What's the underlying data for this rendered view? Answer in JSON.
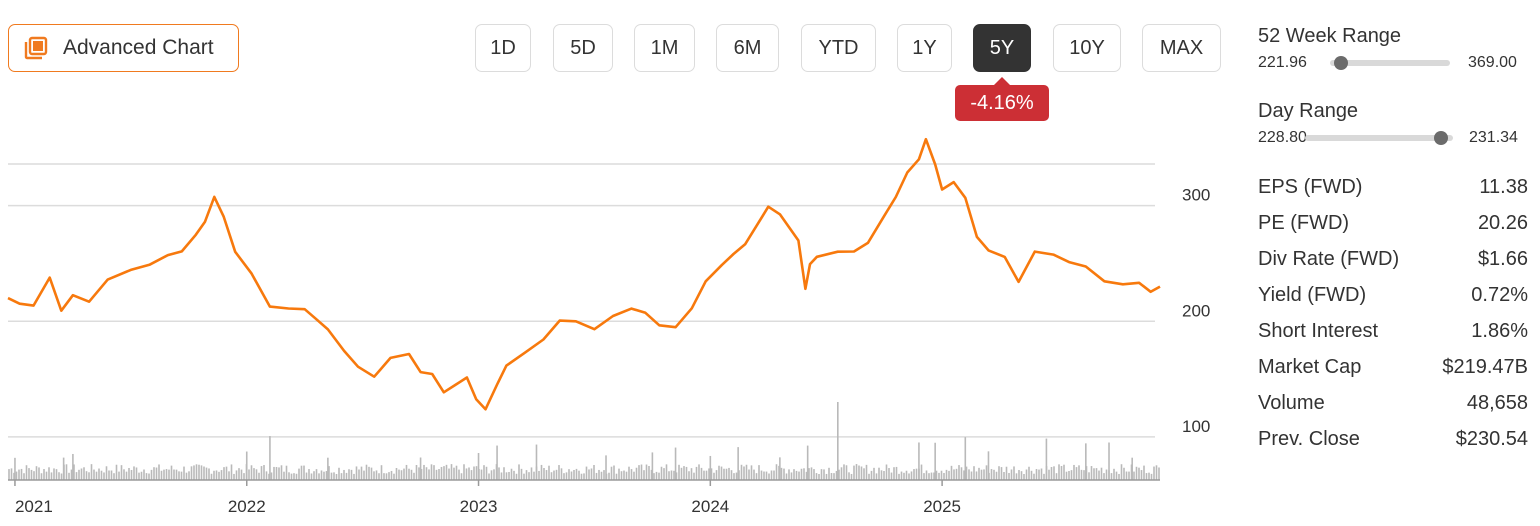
{
  "header": {
    "advanced_chart_label": "Advanced Chart",
    "ranges": [
      "1D",
      "5D",
      "1M",
      "6M",
      "YTD",
      "1Y",
      "5Y",
      "10Y",
      "MAX"
    ],
    "active_range": "5Y",
    "change_badge": "-4.16%"
  },
  "stats": {
    "week52": {
      "title": "52 Week Range",
      "low": "221.96",
      "high": "369.00",
      "position": 0.09
    },
    "day": {
      "title": "Day Range",
      "low": "228.80",
      "high": "231.34",
      "position": 0.92
    },
    "rows": [
      {
        "label": "EPS (FWD)",
        "value": "11.38"
      },
      {
        "label": "PE (FWD)",
        "value": "20.26"
      },
      {
        "label": "Div Rate (FWD)",
        "value": "$1.66"
      },
      {
        "label": "Yield (FWD)",
        "value": "0.72%"
      },
      {
        "label": "Short Interest",
        "value": "1.86%"
      },
      {
        "label": "Market Cap",
        "value": "$219.47B"
      },
      {
        "label": "Volume",
        "value": "48,658"
      },
      {
        "label": "Prev. Close",
        "value": "$230.54"
      }
    ]
  },
  "colors": {
    "accent": "#f07a1f",
    "line": "#f7790d",
    "negative": "#cc2f35",
    "active_btn": "#333333",
    "volume": "#b9b9b9",
    "grid": "#dcdcdc"
  },
  "chart_data": {
    "type": "line",
    "y_ticks": [
      100,
      200,
      300
    ],
    "ylim": [
      80,
      400
    ],
    "x_ticks": [
      "2021",
      "2022",
      "2023",
      "2024",
      "2025"
    ],
    "xlim": [
      2020.97,
      2025.94
    ],
    "grid": true,
    "series": [
      {
        "x": [
          2020.97,
          2021.02,
          2021.08,
          2021.15,
          2021.2,
          2021.25,
          2021.32,
          2021.4,
          2021.5,
          2021.58,
          2021.66,
          2021.72,
          2021.78,
          2021.82,
          2021.86,
          2021.9,
          2021.95,
          2022.02,
          2022.1,
          2022.18,
          2022.25,
          2022.3,
          2022.35,
          2022.42,
          2022.48,
          2022.55,
          2022.62,
          2022.7,
          2022.75,
          2022.8,
          2022.85,
          2022.9,
          2022.95,
          2022.99,
          2023.03,
          2023.08,
          2023.12,
          2023.2,
          2023.28,
          2023.35,
          2023.42,
          2023.5,
          2023.58,
          2023.66,
          2023.72,
          2023.78,
          2023.85,
          2023.92,
          2023.98,
          2024.05,
          2024.1,
          2024.15,
          2024.2,
          2024.25,
          2024.3,
          2024.38,
          2024.41,
          2024.43,
          2024.46,
          2024.55,
          2024.62,
          2024.68,
          2024.75,
          2024.8,
          2024.85,
          2024.9,
          2024.93,
          2024.97,
          2025.0,
          2025.05,
          2025.1,
          2025.15,
          2025.2,
          2025.27,
          2025.33,
          2025.4,
          2025.48,
          2025.55,
          2025.62,
          2025.7,
          2025.78,
          2025.85,
          2025.9,
          2025.94
        ],
        "y": [
          220,
          215,
          212,
          240,
          210,
          222,
          215,
          238,
          245,
          248,
          255,
          262,
          275,
          285,
          305,
          292,
          260,
          240,
          215,
          212,
          210,
          200,
          195,
          175,
          160,
          150,
          170,
          172,
          155,
          152,
          140,
          145,
          150,
          135,
          125,
          145,
          160,
          175,
          185,
          200,
          198,
          195,
          205,
          210,
          205,
          198,
          195,
          210,
          232,
          250,
          258,
          265,
          285,
          300,
          292,
          268,
          230,
          250,
          255,
          258,
          262,
          268,
          290,
          305,
          330,
          340,
          356,
          338,
          315,
          320,
          305,
          275,
          262,
          255,
          232,
          262,
          258,
          250,
          245,
          236,
          232,
          232,
          228,
          230
        ]
      }
    ],
    "volume_spikes": [
      2021.0,
      2021.21,
      2021.25,
      2022.0,
      2022.1,
      2022.35,
      2022.75,
      2023.0,
      2023.08,
      2023.25,
      2023.55,
      2023.75,
      2023.85,
      2024.0,
      2024.12,
      2024.3,
      2024.42,
      2024.55,
      2024.9,
      2024.97,
      2025.1,
      2025.2,
      2025.45,
      2025.62,
      2025.72,
      2025.82
    ]
  }
}
